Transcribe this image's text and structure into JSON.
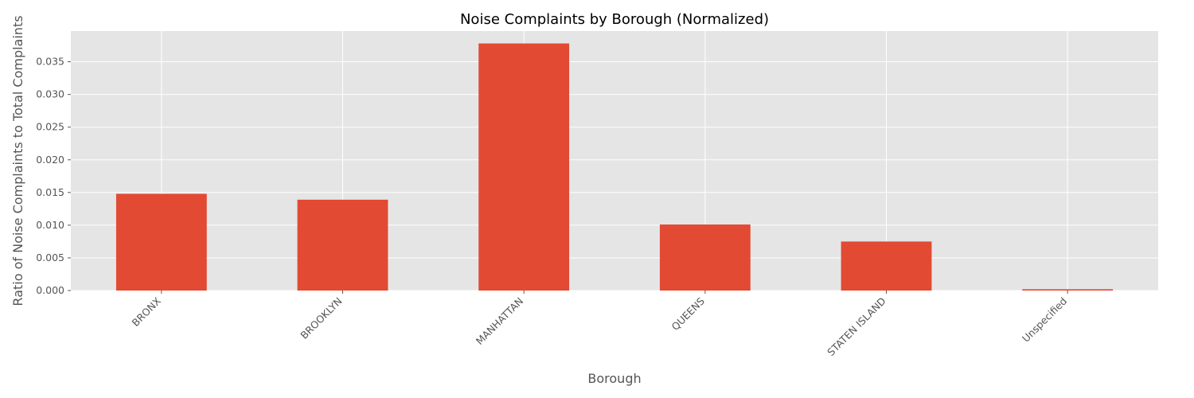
{
  "chart_data": {
    "type": "bar",
    "title": "Noise Complaints by Borough (Normalized)",
    "xlabel": "Borough",
    "ylabel": "Ratio of Noise Complaints to Total Complaints",
    "categories": [
      "BRONX",
      "BROOKLYN",
      "MANHATTAN",
      "QUEENS",
      "STATEN ISLAND",
      "Unspecified"
    ],
    "values": [
      0.0148,
      0.0139,
      0.0378,
      0.0101,
      0.0075,
      0.0002
    ],
    "ylim": [
      0,
      0.0397
    ],
    "yticks": [
      "0.000",
      "0.005",
      "0.010",
      "0.015",
      "0.020",
      "0.025",
      "0.030",
      "0.035"
    ],
    "ytick_values": [
      0,
      0.005,
      0.01,
      0.015,
      0.02,
      0.025,
      0.03,
      0.035
    ],
    "grid": true,
    "legend": "none",
    "colors": {
      "bar": "#E24A33",
      "plot_background": "#E5E5E5",
      "grid": "#FFFFFF",
      "text": "#555555"
    }
  }
}
